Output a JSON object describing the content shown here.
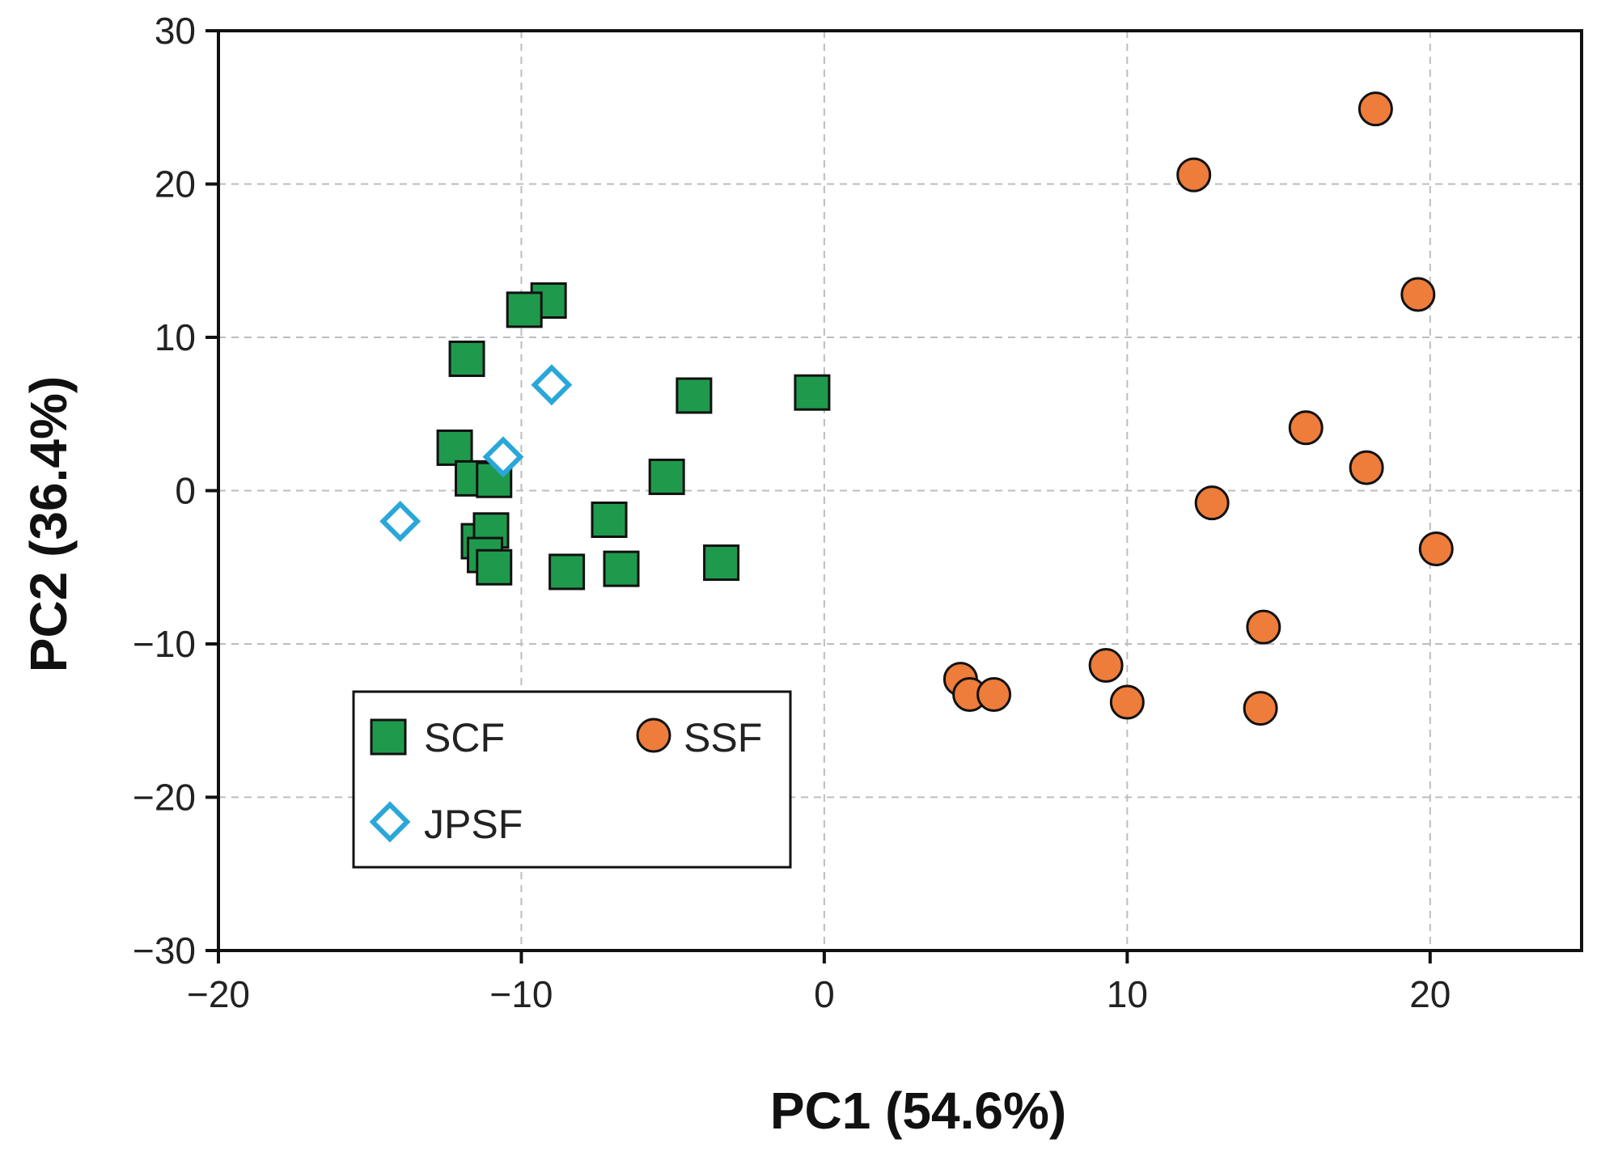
{
  "chart_data": {
    "type": "scatter",
    "title": "",
    "xlabel": "PC1 (54.6%)",
    "ylabel": "PC2 (36.4%)",
    "xlim": [
      -20,
      25
    ],
    "ylim": [
      -30,
      30
    ],
    "xticks": [
      -20,
      -10,
      0,
      10,
      20
    ],
    "yticks": [
      -30,
      -20,
      -10,
      0,
      10,
      20,
      30
    ],
    "xtick_labels": [
      "−20",
      "−10",
      "0",
      "10",
      "20"
    ],
    "ytick_labels": [
      "−30",
      "−20",
      "−10",
      "0",
      "10",
      "20",
      "30"
    ],
    "grid": true,
    "legend_position": "bottom-left",
    "series": [
      {
        "name": "SCF",
        "marker": "square",
        "color": "#1f9a4c",
        "x": [
          -9.1,
          -9.9,
          -11.8,
          -4.3,
          -0.4,
          -12.2,
          -11.6,
          -10.9,
          -5.2,
          -7.1,
          -11.4,
          -11.0,
          -11.2,
          -10.9,
          -8.5,
          -6.7,
          -3.4
        ],
        "y": [
          12.4,
          11.8,
          8.6,
          6.2,
          6.4,
          2.8,
          0.8,
          0.7,
          0.9,
          -1.9,
          -3.3,
          -2.6,
          -4.2,
          -5.0,
          -5.3,
          -5.1,
          -4.7
        ]
      },
      {
        "name": "JPSF",
        "marker": "diamond-open",
        "color": "#2aa7d9",
        "x": [
          -9.0,
          -10.6,
          -14.0
        ],
        "y": [
          6.9,
          2.2,
          -2.0
        ]
      },
      {
        "name": "SSF",
        "marker": "circle",
        "color": "#ee7c3a",
        "x": [
          18.2,
          12.2,
          19.6,
          15.9,
          17.9,
          12.8,
          20.2,
          14.5,
          9.3,
          10.0,
          14.4,
          4.5,
          4.8,
          5.6
        ],
        "y": [
          24.9,
          20.6,
          12.8,
          4.1,
          1.5,
          -0.8,
          -3.8,
          -8.9,
          -11.4,
          -13.8,
          -14.2,
          -12.3,
          -13.3,
          -13.3
        ]
      }
    ]
  }
}
